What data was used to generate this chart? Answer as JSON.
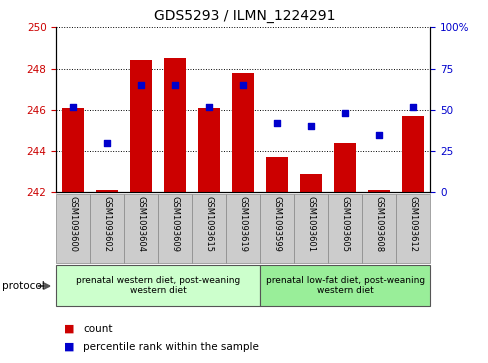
{
  "title": "GDS5293 / ILMN_1224291",
  "samples": [
    "GSM1093600",
    "GSM1093602",
    "GSM1093604",
    "GSM1093609",
    "GSM1093615",
    "GSM1093619",
    "GSM1093599",
    "GSM1093601",
    "GSM1093605",
    "GSM1093608",
    "GSM1093612"
  ],
  "counts": [
    246.1,
    242.1,
    248.4,
    248.5,
    246.1,
    247.8,
    243.7,
    242.9,
    244.4,
    242.1,
    245.7
  ],
  "percentiles": [
    52,
    30,
    65,
    65,
    52,
    65,
    42,
    40,
    48,
    35,
    52
  ],
  "ylim_left": [
    242,
    250
  ],
  "ylim_right": [
    0,
    100
  ],
  "yticks_left": [
    242,
    244,
    246,
    248,
    250
  ],
  "yticks_right": [
    0,
    25,
    50,
    75,
    100
  ],
  "bar_color": "#cc0000",
  "dot_color": "#0000cc",
  "bar_bottom": 242,
  "groups": [
    {
      "label": "prenatal western diet, post-weaning\nwestern diet",
      "start": 0,
      "end": 6,
      "color": "#ccffcc"
    },
    {
      "label": "prenatal low-fat diet, post-weaning\nwestern diet",
      "start": 6,
      "end": 11,
      "color": "#99ee99"
    }
  ],
  "protocol_label": "protocol",
  "legend_count": "count",
  "legend_percentile": "percentile rank within the sample",
  "bg_color": "#ffffff",
  "plot_bg": "#ffffff",
  "tick_label_color_left": "#cc0000",
  "tick_label_color_right": "#0000cc",
  "xtick_bg": "#cccccc",
  "right_pct_labels": [
    "100%",
    "75",
    "50",
    "25",
    "0"
  ]
}
